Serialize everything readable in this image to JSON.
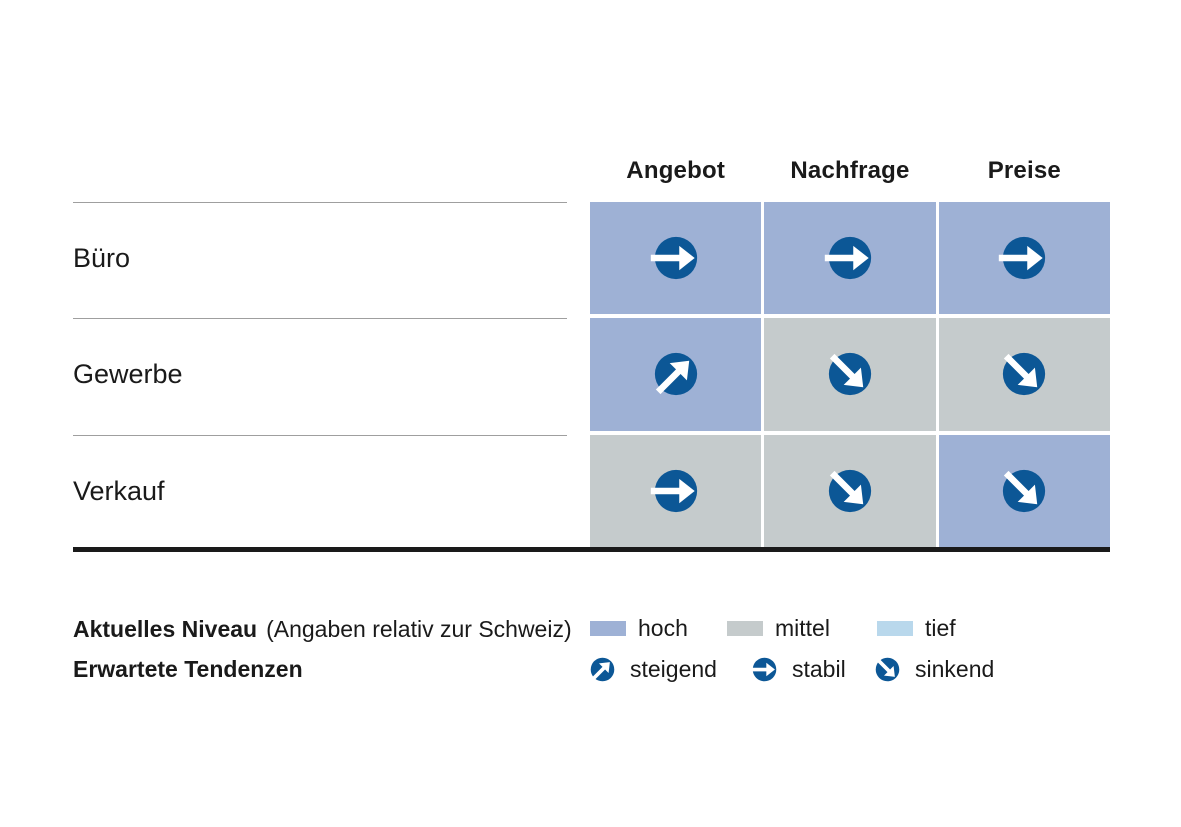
{
  "colors": {
    "hoch": "#9EB1D5",
    "mittel": "#C5CBCC",
    "tief": "#B9D8EC",
    "tendenz_circle": "#0C5796",
    "arrow": "#FFFFFF"
  },
  "chart_data": {
    "type": "table",
    "columns": [
      "Angebot",
      "Nachfrage",
      "Preise"
    ],
    "rows": [
      {
        "label": "Büro",
        "cells": [
          {
            "niveau": "hoch",
            "tendenz": "stabil"
          },
          {
            "niveau": "hoch",
            "tendenz": "stabil"
          },
          {
            "niveau": "hoch",
            "tendenz": "stabil"
          }
        ]
      },
      {
        "label": "Gewerbe",
        "cells": [
          {
            "niveau": "hoch",
            "tendenz": "steigend"
          },
          {
            "niveau": "mittel",
            "tendenz": "sinkend"
          },
          {
            "niveau": "mittel",
            "tendenz": "sinkend"
          }
        ]
      },
      {
        "label": "Verkauf",
        "cells": [
          {
            "niveau": "mittel",
            "tendenz": "stabil"
          },
          {
            "niveau": "mittel",
            "tendenz": "sinkend"
          },
          {
            "niveau": "hoch",
            "tendenz": "sinkend"
          }
        ]
      }
    ],
    "legend_position": "bottom",
    "grid": false
  },
  "legend": {
    "niveau_title": "Aktuelles Niveau",
    "niveau_note": "(Angaben relativ zur Schweiz)",
    "tendenz_title": "Erwartete Tendenzen",
    "niveau_items": [
      {
        "label": "hoch"
      },
      {
        "label": "mittel"
      },
      {
        "label": "tief"
      }
    ],
    "tendenz_items": [
      {
        "label": "steigend"
      },
      {
        "label": "stabil"
      },
      {
        "label": "sinkend"
      }
    ]
  }
}
